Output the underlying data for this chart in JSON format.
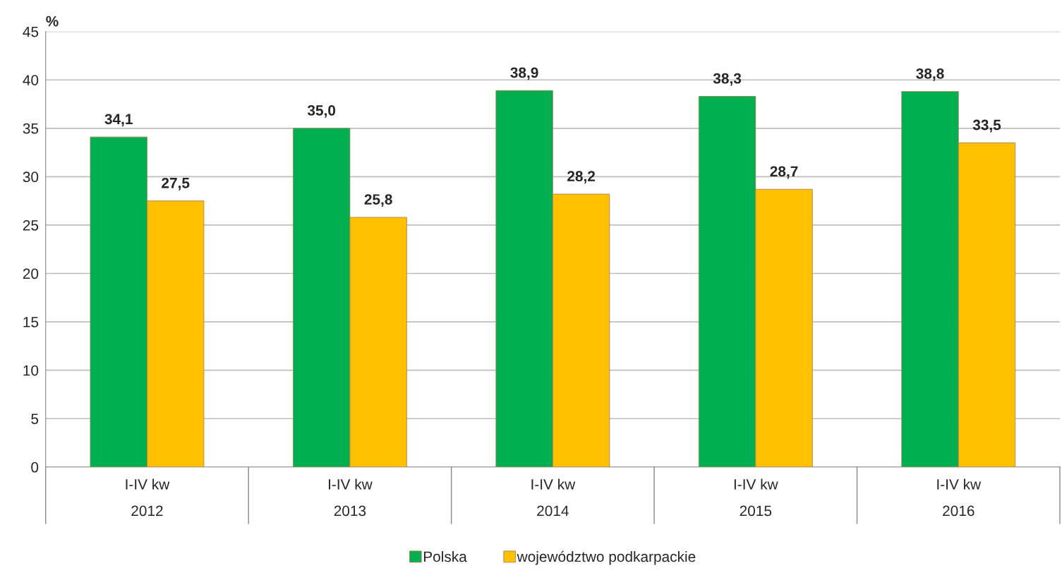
{
  "chart_data": {
    "type": "bar",
    "ylabel": "%",
    "categories": [
      "I-IV kw\n2012",
      "I-IV kw\n2013",
      "I-IV kw\n2014",
      "I-IV kw\n2015",
      "I-IV kw\n2016"
    ],
    "series": [
      {
        "name": "Polska",
        "color": "#00b050",
        "values": [
          34.1,
          35.0,
          38.9,
          38.3,
          38.8
        ],
        "value_labels": [
          "34,1",
          "35,0",
          "38,9",
          "38,3",
          "38,8"
        ]
      },
      {
        "name": "województwo podkarpackie",
        "color": "#ffc000",
        "values": [
          27.5,
          25.8,
          28.2,
          28.7,
          33.5
        ],
        "value_labels": [
          "27,5",
          "25,8",
          "28,2",
          "28,7",
          "33,5"
        ]
      }
    ],
    "ylim": [
      0,
      45
    ],
    "yticks": [
      0,
      5,
      10,
      15,
      20,
      25,
      30,
      35,
      40,
      45
    ],
    "grid": "y",
    "legend": "bottom"
  }
}
